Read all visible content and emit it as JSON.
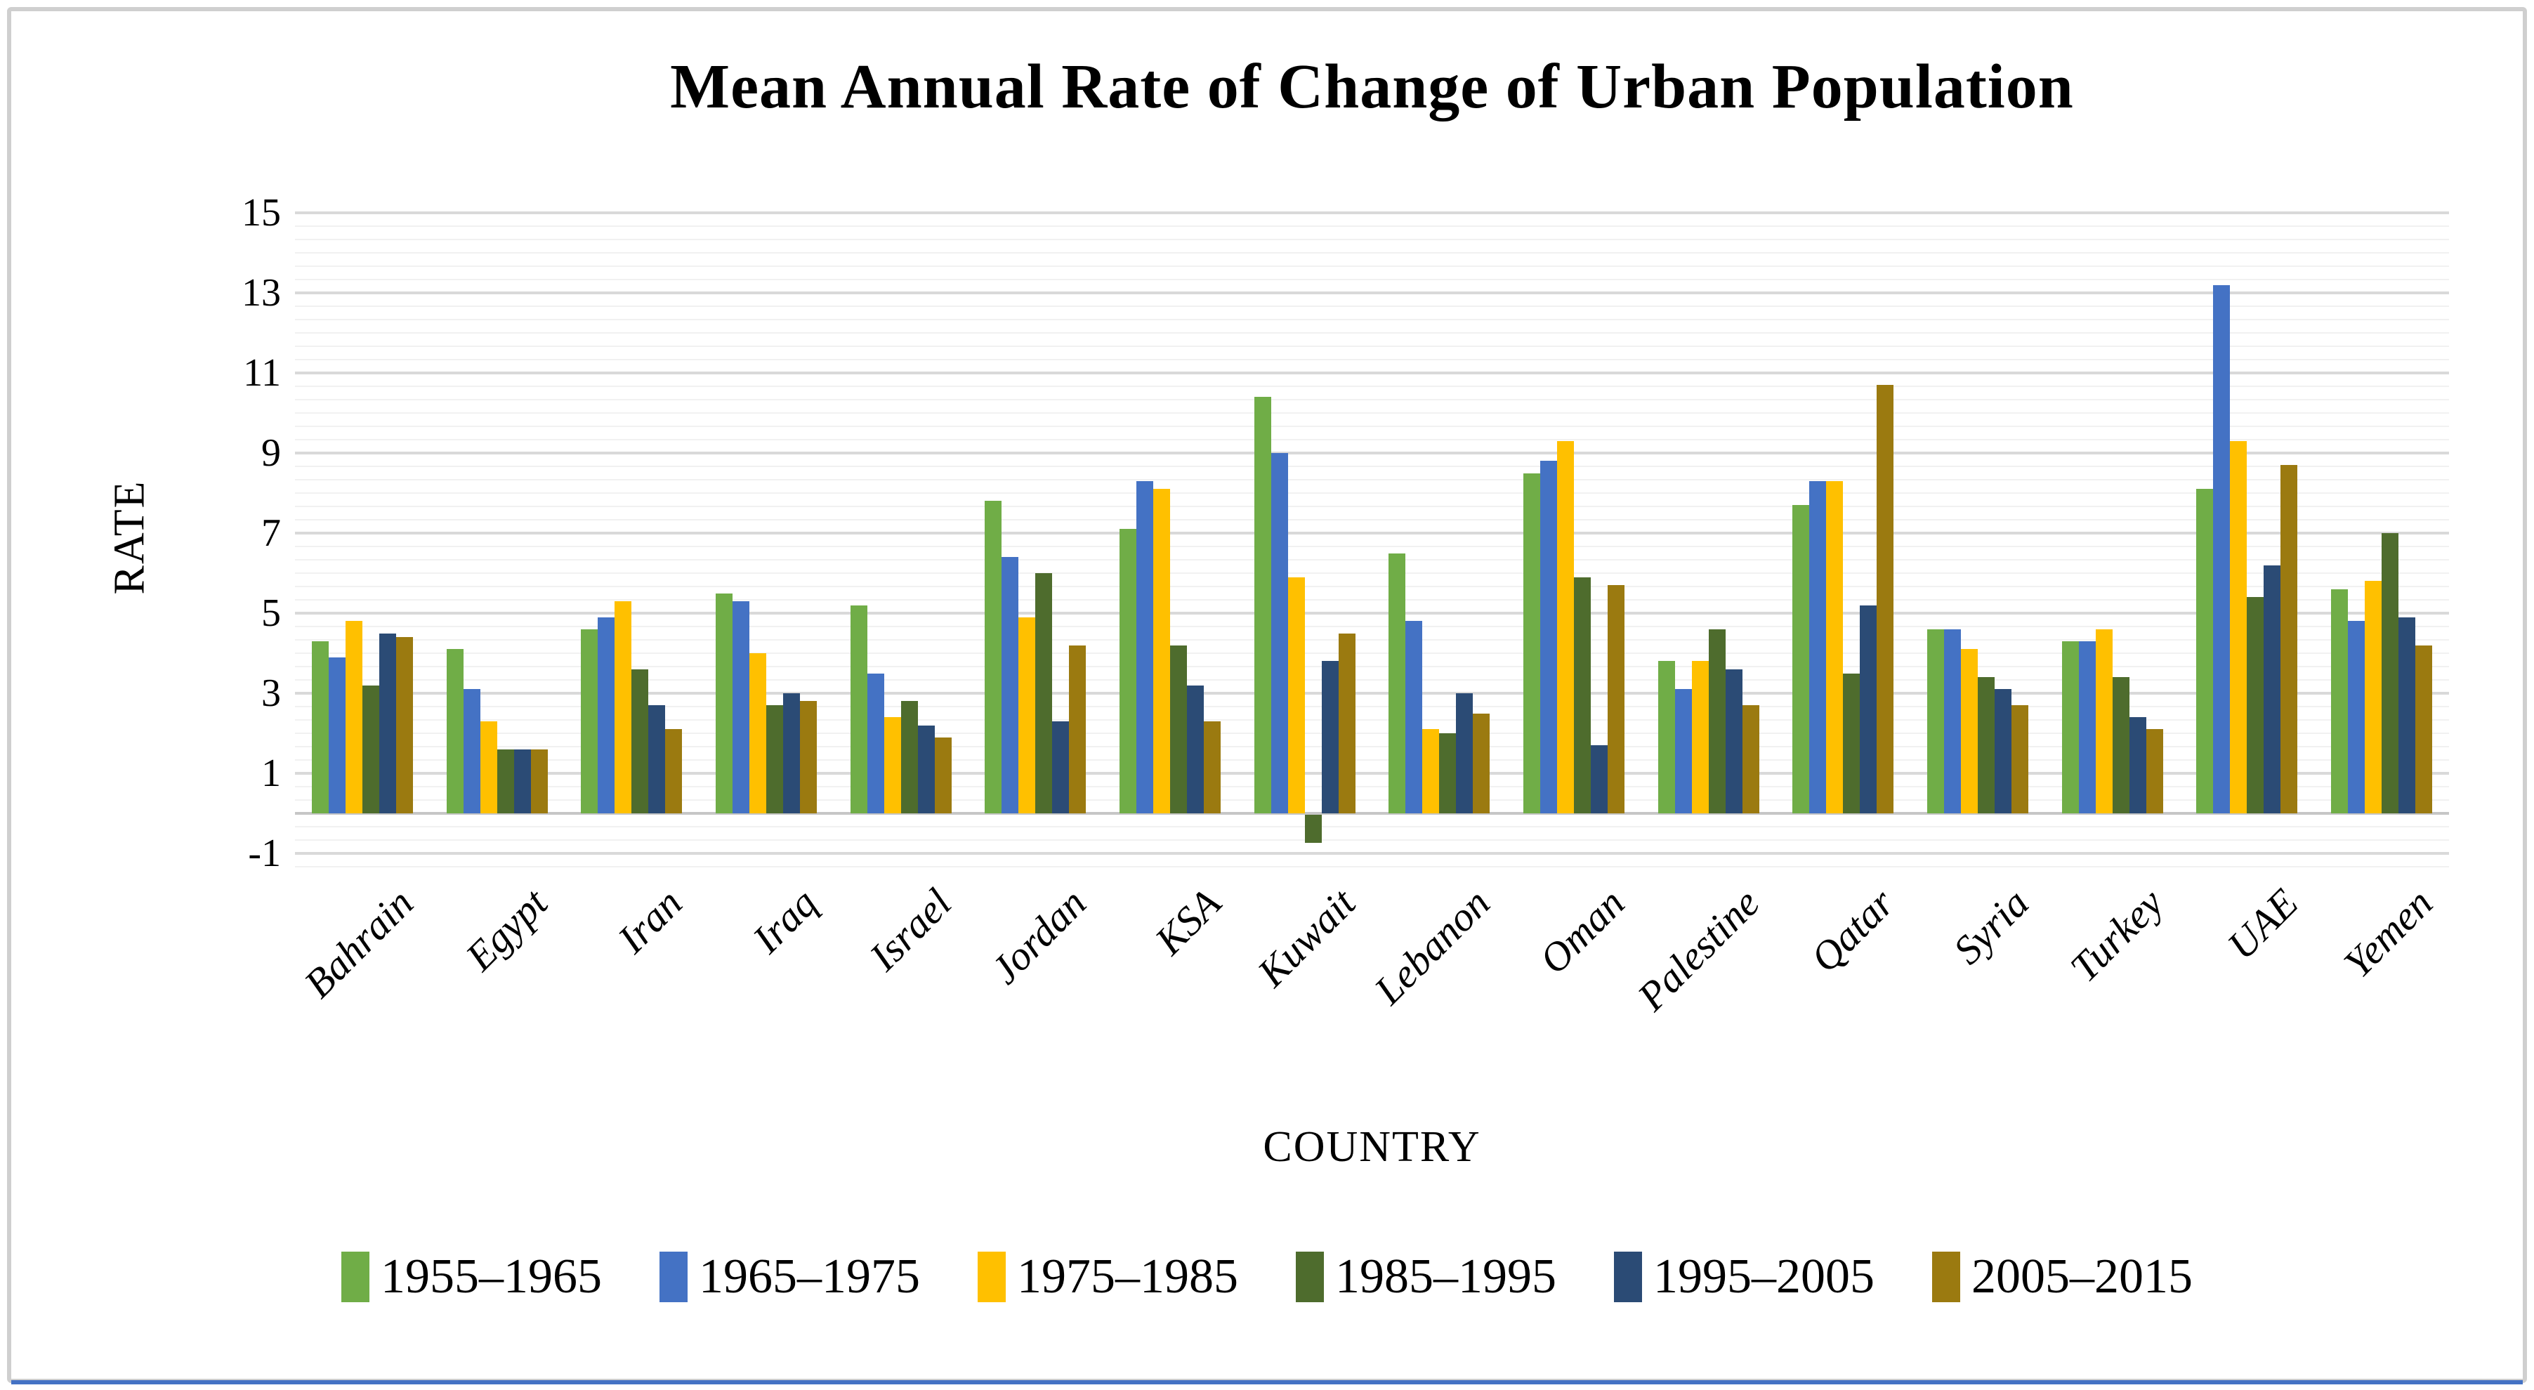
{
  "frame": {
    "border_color": "#cfcfcf",
    "bottom_line_color": "#4472C4"
  },
  "chart_data": {
    "type": "bar",
    "title": "Mean Annual Rate of Change of Urban Population",
    "xlabel": "COUNTRY",
    "ylabel": "RATE",
    "ylim": [
      -1,
      15
    ],
    "y_ticks": [
      15,
      13,
      11,
      9,
      7,
      5,
      3,
      1,
      -1
    ],
    "y_major_step": 2,
    "y_minor_step": 0.3333,
    "grid": "horizontal major (gray) and minor (light gray) gridlines on",
    "legend_position": "bottom",
    "plot_background": "#ffffff",
    "major_grid_color": "#d9d9d9",
    "minor_grid_color": "#f1f1f1",
    "categories": [
      "Bahrain",
      "Egypt",
      "Iran",
      "Iraq",
      "Israel",
      "Jordan",
      "KSA",
      "Kuwait",
      "Lebanon",
      "Oman",
      "Palestine",
      "Qatar",
      "Syria",
      "Turkey",
      "UAE",
      "Yemen"
    ],
    "series": [
      {
        "name": "1955–1965",
        "color": "#70AD47",
        "values": [
          4.3,
          4.1,
          4.6,
          5.5,
          5.2,
          7.8,
          7.1,
          10.4,
          6.5,
          8.5,
          3.8,
          7.7,
          4.6,
          4.3,
          8.1,
          5.6
        ]
      },
      {
        "name": "1965–1975",
        "color": "#4472C4",
        "values": [
          3.9,
          3.1,
          4.9,
          5.3,
          3.5,
          6.4,
          8.3,
          9.0,
          4.8,
          8.8,
          3.1,
          8.3,
          4.6,
          4.3,
          13.2,
          4.8
        ]
      },
      {
        "name": "1975–1985",
        "color": "#FFC000",
        "values": [
          4.8,
          2.3,
          5.3,
          4.0,
          2.4,
          4.9,
          8.1,
          5.9,
          2.1,
          9.3,
          3.8,
          8.3,
          4.1,
          4.6,
          9.3,
          5.8
        ]
      },
      {
        "name": "1985–1995",
        "color": "#4E6C2D",
        "values": [
          3.2,
          1.6,
          3.6,
          2.7,
          2.8,
          6.0,
          4.2,
          -0.7,
          2.0,
          5.9,
          4.6,
          3.5,
          3.4,
          3.4,
          5.4,
          7.0
        ]
      },
      {
        "name": "1995–2005",
        "color": "#2B4B75",
        "values": [
          4.5,
          1.6,
          2.7,
          3.0,
          2.2,
          2.3,
          3.2,
          3.8,
          3.0,
          1.7,
          3.6,
          5.2,
          3.1,
          2.4,
          6.2,
          4.9
        ]
      },
      {
        "name": "2005–2015",
        "color": "#9B7A10",
        "values": [
          4.4,
          1.6,
          2.1,
          2.8,
          1.9,
          4.2,
          2.3,
          4.5,
          2.5,
          5.7,
          2.7,
          10.7,
          2.7,
          2.1,
          8.7,
          4.2
        ]
      }
    ]
  }
}
